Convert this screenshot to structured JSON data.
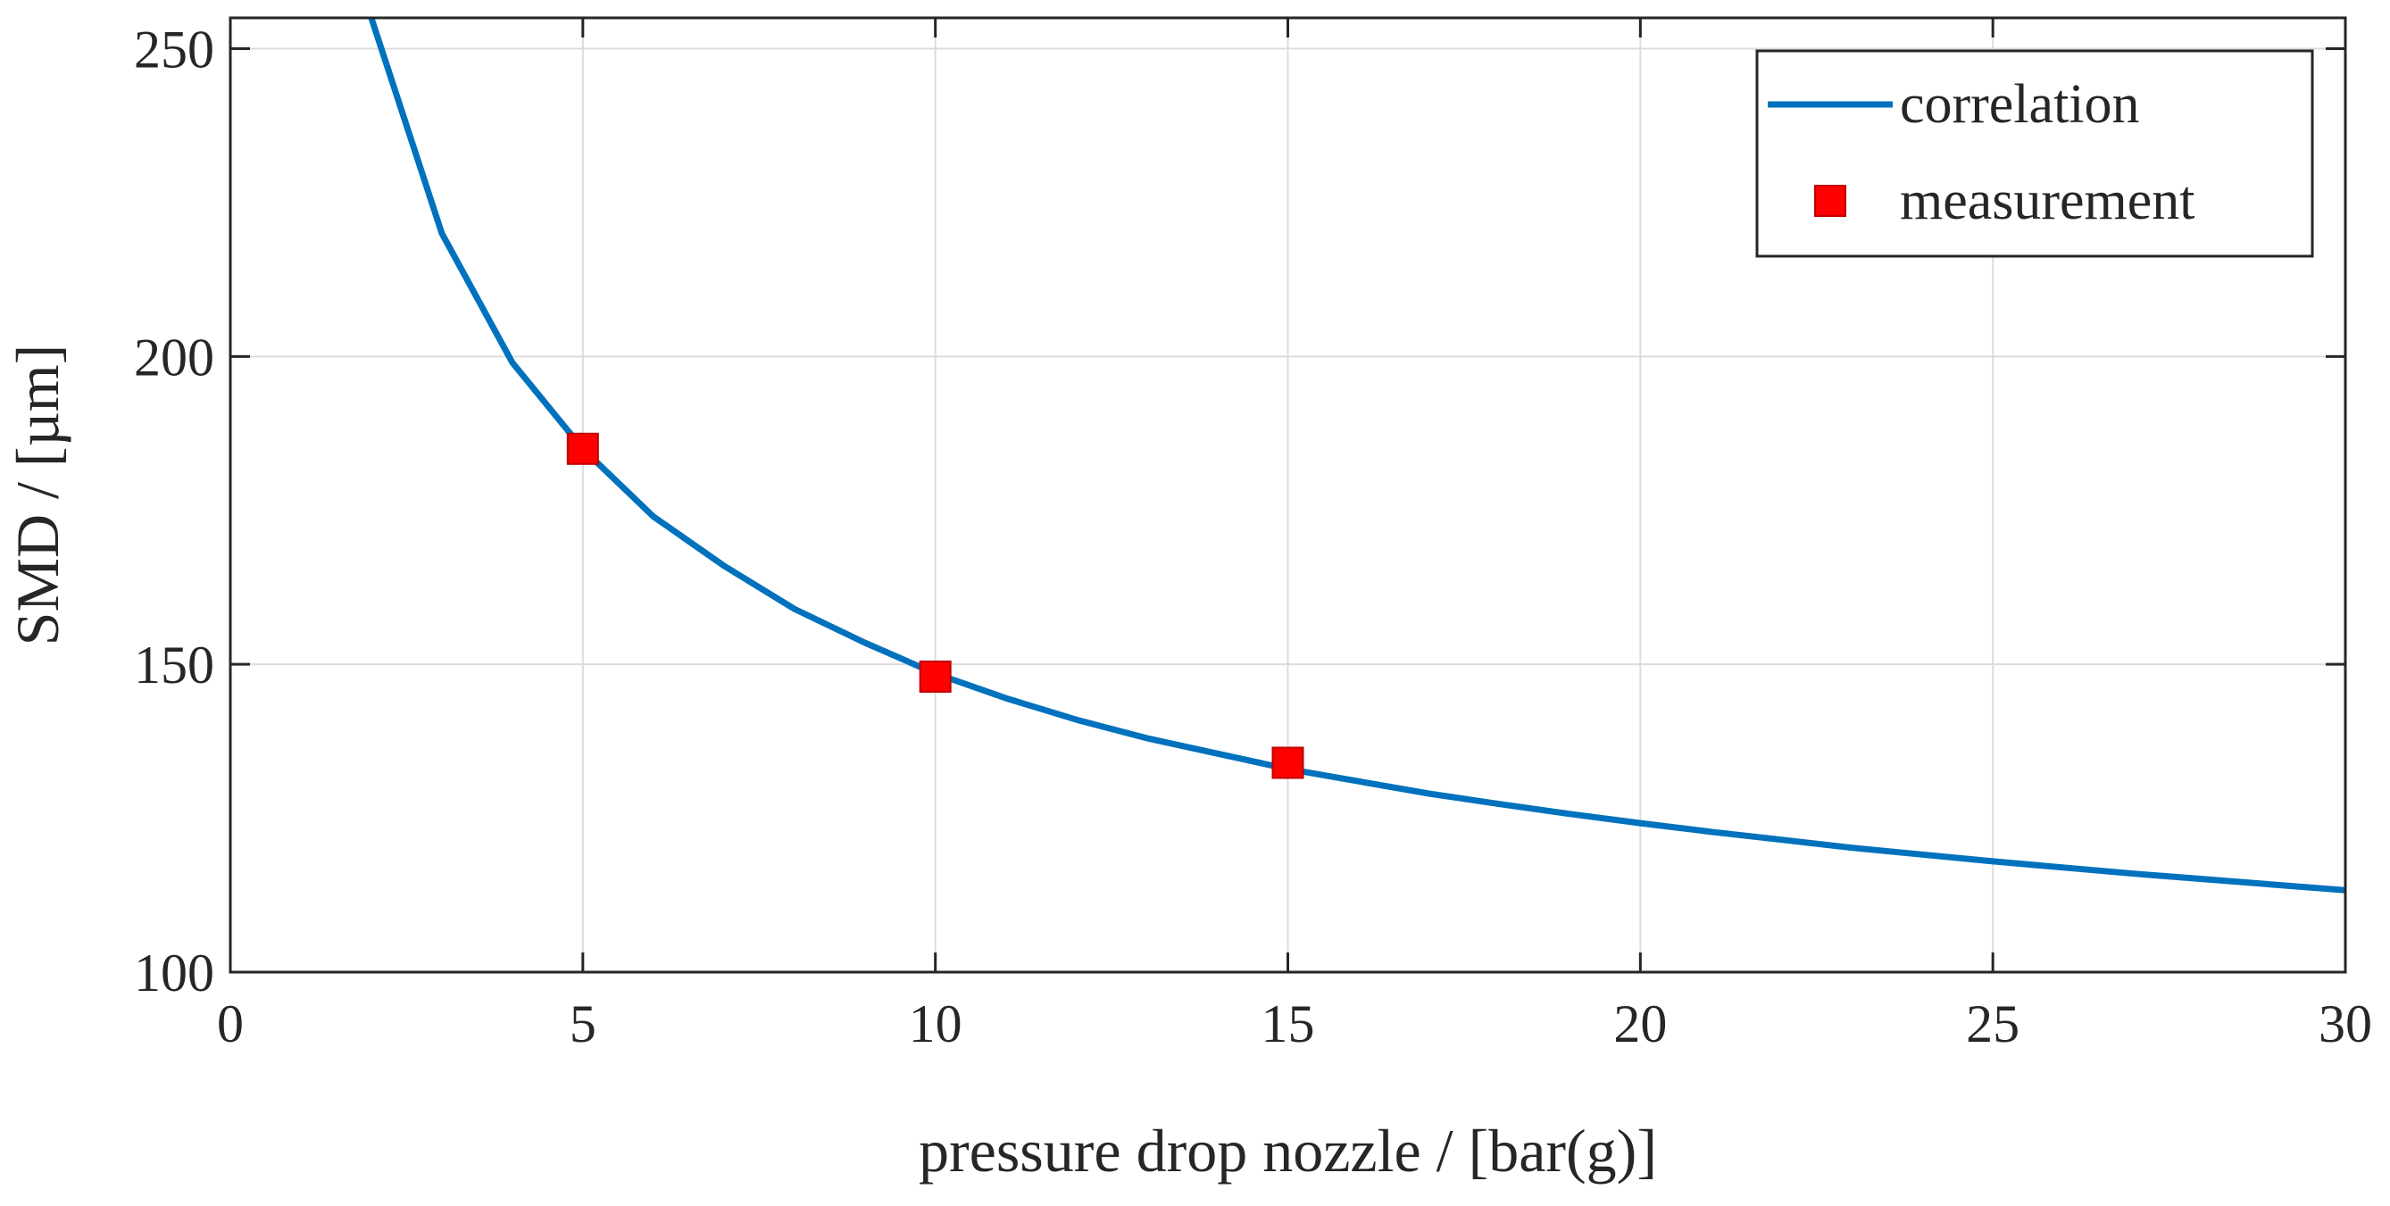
{
  "chart_data": {
    "type": "line",
    "title": "",
    "xlabel": "pressure drop nozzle / [bar(g)]",
    "ylabel": "SMD / [µm]",
    "xlim": [
      0,
      30
    ],
    "ylim": [
      100,
      255
    ],
    "xticks": [
      0,
      5,
      10,
      15,
      20,
      25,
      30
    ],
    "yticks": [
      100,
      150,
      200,
      250
    ],
    "xtick_labels": [
      "0",
      "5",
      "10",
      "15",
      "20",
      "25",
      "30"
    ],
    "ytick_labels": [
      "100",
      "150",
      "200",
      "250"
    ],
    "grid": true,
    "legend_position": "top-right",
    "series": [
      {
        "name": "correlation",
        "style": "line",
        "color": "#0072BD",
        "x": [
          2,
          3,
          4,
          5,
          6,
          7,
          8,
          9,
          10,
          11,
          12,
          13,
          14,
          15,
          16,
          17,
          18,
          19,
          20,
          21,
          22,
          23,
          24,
          25,
          26,
          27,
          28,
          29,
          30
        ],
        "y": [
          255,
          220,
          199,
          185,
          174,
          166,
          159,
          153.5,
          148.5,
          144.5,
          141,
          138,
          135.5,
          133,
          131,
          129,
          127.3,
          125.7,
          124.2,
          122.8,
          121.5,
          120.2,
          119.1,
          118,
          117,
          116,
          115.1,
          114.2,
          113.3
        ]
      },
      {
        "name": "measurement",
        "style": "marker-square",
        "color": "#FF0000",
        "x": [
          5,
          10,
          15
        ],
        "y": [
          185,
          148,
          134
        ]
      }
    ]
  }
}
